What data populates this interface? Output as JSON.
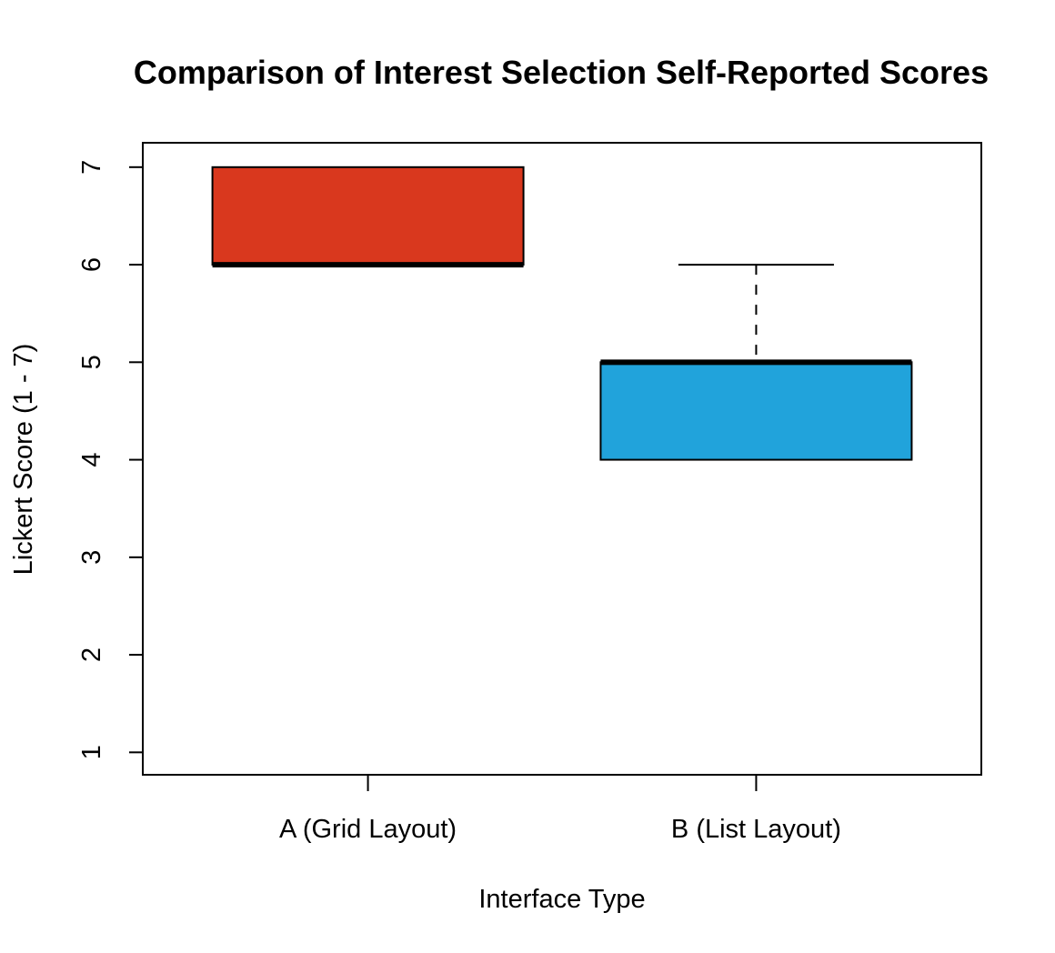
{
  "chart_data": {
    "type": "box",
    "title": "Comparison of Interest Selection Self-Reported Scores",
    "xlabel": "Interface Type",
    "ylabel": "Lickert Score (1 - 7)",
    "ylim": [
      0.77,
      7.25
    ],
    "yticks": [
      "1",
      "2",
      "3",
      "4",
      "5",
      "6",
      "7"
    ],
    "categories": [
      "A (Grid Layout)",
      "B (List Layout)"
    ],
    "boxes": [
      {
        "category": "A (Grid Layout)",
        "min": 6,
        "q1": 6,
        "median": 6,
        "q3": 7,
        "max": 7,
        "color": "#D9381E"
      },
      {
        "category": "B (List Layout)",
        "min": 4,
        "q1": 4,
        "median": 5,
        "q3": 5,
        "max": 6,
        "color": "#21A3DB"
      }
    ],
    "grid": false,
    "legend": "none"
  }
}
